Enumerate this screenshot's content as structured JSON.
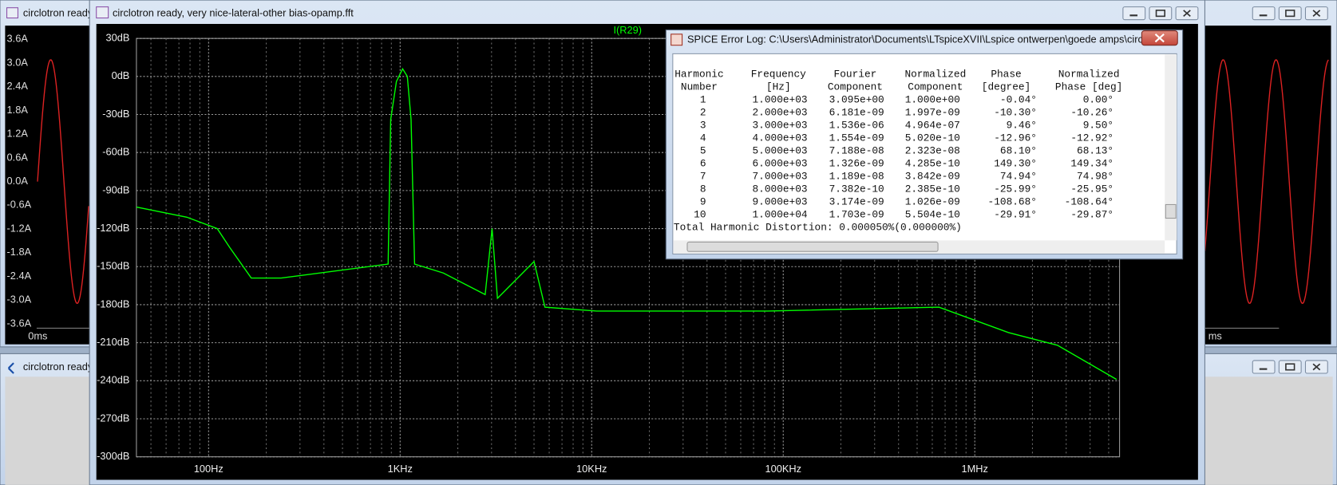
{
  "windows": {
    "back_left": {
      "title": "circlotron ready",
      "plot_ticks": [
        "3.6A",
        "3.0A",
        "2.4A",
        "1.8A",
        "1.2A",
        "0.6A",
        "0.0A",
        "-0.6A",
        "-1.2A",
        "-1.8A",
        "-2.4A",
        "-3.0A",
        "-3.6A"
      ],
      "time_label": "0ms"
    },
    "back_right": {
      "time_label": "ms"
    },
    "bottom_left": {
      "title": "circlotron ready"
    }
  },
  "main_window": {
    "title": "circlotron ready, very nice-lateral-other bias-opamp.fft",
    "fft_plot": {
      "trace_name": "I(R29)",
      "color": "#00ff00",
      "log_x": true,
      "grid": true,
      "xlim": [
        42,
        5700000
      ],
      "ylim": [
        -300,
        30
      ],
      "xticks": [
        {
          "value": 100,
          "label": "100Hz"
        },
        {
          "value": 1000,
          "label": "1KHz"
        },
        {
          "value": 10000,
          "label": "10KHz"
        },
        {
          "value": 100000,
          "label": "100KHz"
        },
        {
          "value": 1000000,
          "label": "1MHz"
        }
      ],
      "yticks": [
        {
          "value": 30,
          "label": "30dB"
        },
        {
          "value": 0,
          "label": "0dB"
        },
        {
          "value": -30,
          "label": "-30dB"
        },
        {
          "value": -60,
          "label": "-60dB"
        },
        {
          "value": -90,
          "label": "-90dB"
        },
        {
          "value": -120,
          "label": "-120dB"
        },
        {
          "value": -150,
          "label": "-150dB"
        },
        {
          "value": -180,
          "label": "-180dB"
        },
        {
          "value": -210,
          "label": "-210dB"
        },
        {
          "value": -240,
          "label": "-240dB"
        },
        {
          "value": -270,
          "label": "-270dB"
        },
        {
          "value": -300,
          "label": "-300dB"
        }
      ],
      "x": [
        42,
        77,
        111,
        129,
        167,
        239,
        866,
        893,
        956,
        1030,
        1090,
        1140,
        1190,
        1680,
        2780,
        3020,
        3220,
        5000,
        5700,
        10600,
        83000,
        650000,
        1500000,
        2700000,
        5500000
      ],
      "values": [
        -103,
        -111,
        -120,
        -135,
        -159,
        -159,
        -148,
        -34,
        -4,
        6,
        0,
        -34,
        -148,
        -155,
        -172,
        -120,
        -175,
        -146,
        -182,
        -185,
        -185,
        -182,
        -202,
        -212,
        -239
      ]
    }
  },
  "error_log": {
    "title": "SPICE Error Log: C:\\Users\\Administrator\\Documents\\LTspiceXVII\\Lspice ontwerpen\\goede amps\\circlotro...",
    "headers": [
      [
        "Harmonic",
        "Number"
      ],
      [
        "Frequency",
        "[Hz]"
      ],
      [
        "Fourier",
        "Component"
      ],
      [
        "Normalized",
        "Component"
      ],
      [
        "Phase",
        "[degree]"
      ],
      [
        "Normalized",
        "Phase [deg]"
      ]
    ],
    "rows": [
      [
        "1",
        "1.000e+03",
        "3.095e+00",
        "1.000e+00",
        "-0.04°",
        "0.00°"
      ],
      [
        "2",
        "2.000e+03",
        "6.181e-09",
        "1.997e-09",
        "-10.30°",
        "-10.26°"
      ],
      [
        "3",
        "3.000e+03",
        "1.536e-06",
        "4.964e-07",
        "9.46°",
        "9.50°"
      ],
      [
        "4",
        "4.000e+03",
        "1.554e-09",
        "5.020e-10",
        "-12.96°",
        "-12.92°"
      ],
      [
        "5",
        "5.000e+03",
        "7.188e-08",
        "2.323e-08",
        "68.10°",
        "68.13°"
      ],
      [
        "6",
        "6.000e+03",
        "1.326e-09",
        "4.285e-10",
        "149.30°",
        "149.34°"
      ],
      [
        "7",
        "7.000e+03",
        "1.189e-08",
        "3.842e-09",
        "74.94°",
        "74.98°"
      ],
      [
        "8",
        "8.000e+03",
        "7.382e-10",
        "2.385e-10",
        "-25.99°",
        "-25.95°"
      ],
      [
        "9",
        "9.000e+03",
        "3.174e-09",
        "1.026e-09",
        "-108.68°",
        "-108.64°"
      ],
      [
        "10",
        "1.000e+04",
        "1.703e-09",
        "5.504e-10",
        "-29.91°",
        "-29.87°"
      ]
    ],
    "thd": "Total Harmonic Distortion: 0.000050%(0.000000%)"
  }
}
